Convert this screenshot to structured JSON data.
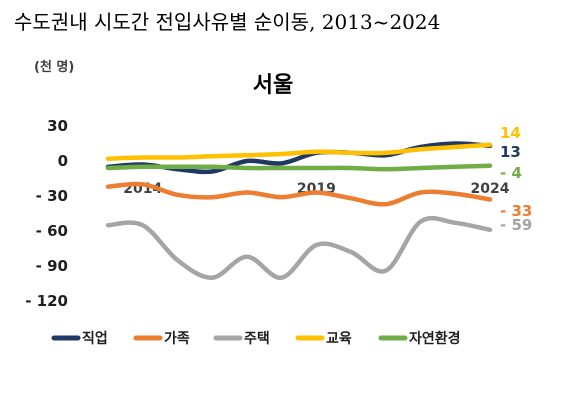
{
  "page": {
    "title": "수도권내 시도간 전입사유별 순이동, 2013~2024"
  },
  "chart_data": {
    "type": "line",
    "title": "서울",
    "unit_label": "(천 명)",
    "ylim": [
      -120,
      30
    ],
    "yticks": [
      30,
      0,
      -30,
      -60,
      -90,
      -120
    ],
    "ytick_labels": [
      "30",
      "0",
      "- 30",
      "- 60",
      "- 90",
      "- 120"
    ],
    "x": [
      2013,
      2014,
      2015,
      2016,
      2017,
      2018,
      2019,
      2020,
      2021,
      2022,
      2023,
      2024
    ],
    "xlim": [
      2013,
      2024
    ],
    "xtick_labels": [
      {
        "x": 2014,
        "label": "2014"
      },
      {
        "x": 2019,
        "label": "2019"
      },
      {
        "x": 2024,
        "label": "2024"
      }
    ],
    "grid": false,
    "legend_position": "bottom",
    "series": [
      {
        "name": "직업",
        "color": "#1f3864",
        "end_label": "13",
        "label_color": "#1f3864",
        "values": [
          -5,
          -3,
          -7,
          -9,
          0,
          -2,
          7,
          7,
          5,
          12,
          15,
          13
        ]
      },
      {
        "name": "가족",
        "color": "#ed7d31",
        "end_label": "- 33",
        "label_color": "#ed7d31",
        "values": [
          -22,
          -20,
          -29,
          -31,
          -27,
          -31,
          -27,
          -32,
          -37,
          -27,
          -28,
          -33
        ]
      },
      {
        "name": "주택",
        "color": "#a5a5a5",
        "end_label": "- 59",
        "label_color": "#a5a5a5",
        "values": [
          -55,
          -55,
          -85,
          -100,
          -82,
          -100,
          -72,
          -78,
          -94,
          -52,
          -53,
          -59
        ]
      },
      {
        "name": "교육",
        "color": "#ffc000",
        "end_label": "14",
        "label_color": "#ffc000",
        "values": [
          2,
          3,
          3,
          4,
          5,
          6,
          8,
          7,
          7,
          10,
          12,
          14
        ]
      },
      {
        "name": "자연환경",
        "color": "#70ad47",
        "end_label": "- 4",
        "label_color": "#70ad47",
        "values": [
          -6,
          -5,
          -5,
          -5,
          -6,
          -6,
          -6,
          -6,
          -7,
          -6,
          -5,
          -4
        ]
      }
    ]
  }
}
